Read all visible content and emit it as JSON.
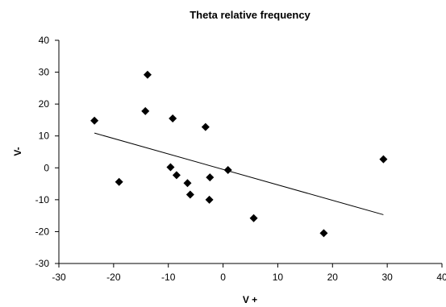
{
  "chart_data": {
    "type": "scatter",
    "title": "Theta relative frequency",
    "xlabel": "V +",
    "ylabel": "V-",
    "xlim": [
      -30,
      40
    ],
    "ylim": [
      -30,
      40
    ],
    "x_ticks": [
      -30,
      -20,
      -10,
      0,
      10,
      20,
      30,
      40
    ],
    "y_ticks": [
      -30,
      -20,
      -10,
      0,
      10,
      20,
      30,
      40
    ],
    "grid": false,
    "legend": "none",
    "series": [
      {
        "marker": "diamond",
        "color": "#000000",
        "points": [
          {
            "x": -23.5,
            "y": 14.8
          },
          {
            "x": -19.0,
            "y": -4.4
          },
          {
            "x": -14.2,
            "y": 17.8
          },
          {
            "x": -13.8,
            "y": 29.2
          },
          {
            "x": -9.2,
            "y": 15.5
          },
          {
            "x": -9.6,
            "y": 0.2
          },
          {
            "x": -8.5,
            "y": -2.3
          },
          {
            "x": -6.5,
            "y": -4.8
          },
          {
            "x": -6.0,
            "y": -8.4
          },
          {
            "x": -3.2,
            "y": 12.8
          },
          {
            "x": -2.4,
            "y": -3.0
          },
          {
            "x": -2.5,
            "y": -10.0
          },
          {
            "x": 0.9,
            "y": -0.7
          },
          {
            "x": 5.6,
            "y": -15.8
          },
          {
            "x": 18.4,
            "y": -20.5
          },
          {
            "x": 29.3,
            "y": 2.7
          }
        ]
      }
    ],
    "trendline": {
      "x1": -23.5,
      "y1": 10.9,
      "x2": 29.3,
      "y2": -14.7
    }
  }
}
